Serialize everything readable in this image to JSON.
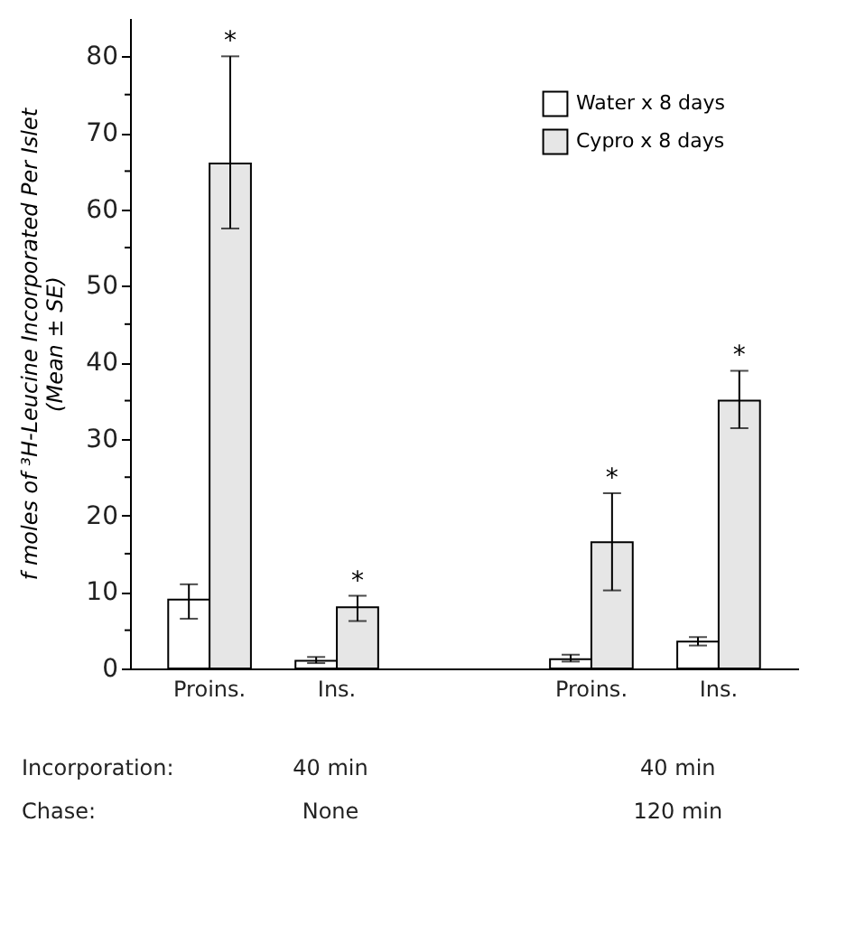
{
  "chart_data": {
    "type": "bar",
    "categories": [
      "Proins.",
      "Ins.",
      "Proins.",
      "Ins."
    ],
    "ylabel": "f moles of ³H-Leucine Incorporated Per Islet\n(Mean ± SE)",
    "ylim": [
      0,
      85
    ],
    "yticks": [
      0,
      {
        "value": 5,
        "label": null
      },
      10,
      {
        "value": 15,
        "label": null
      },
      20,
      {
        "value": 25,
        "label": null
      },
      30,
      {
        "value": 35,
        "label": null
      },
      40,
      {
        "value": 45,
        "label": null
      },
      50,
      {
        "value": 55,
        "label": null
      },
      60,
      {
        "value": 65,
        "label": null
      },
      70,
      {
        "value": 75,
        "label": null
      },
      80
    ],
    "series": [
      {
        "name": "Water x 8 days",
        "color": "#ffffff",
        "values": [
          9,
          1,
          1.2,
          3.5
        ],
        "errors": [
          [
            6.5,
            11
          ],
          [
            0.7,
            1.5
          ],
          [
            0.9,
            1.8
          ],
          [
            3,
            4.1
          ]
        ]
      },
      {
        "name": "Cypro x 8 days",
        "color": "#e6e6e6",
        "values": [
          66,
          8,
          16.5,
          35
        ],
        "errors": [
          [
            57.5,
            80
          ],
          [
            6.2,
            9.5
          ],
          [
            10.2,
            22.9
          ],
          [
            31.4,
            38.9
          ]
        ]
      }
    ],
    "legend": "top right",
    "grid": false,
    "annotations": [
      "Incorporation:",
      "40 min",
      "40 min",
      "Chase:",
      "None",
      "120 min",
      "*",
      "*",
      "*",
      "*"
    ]
  }
}
